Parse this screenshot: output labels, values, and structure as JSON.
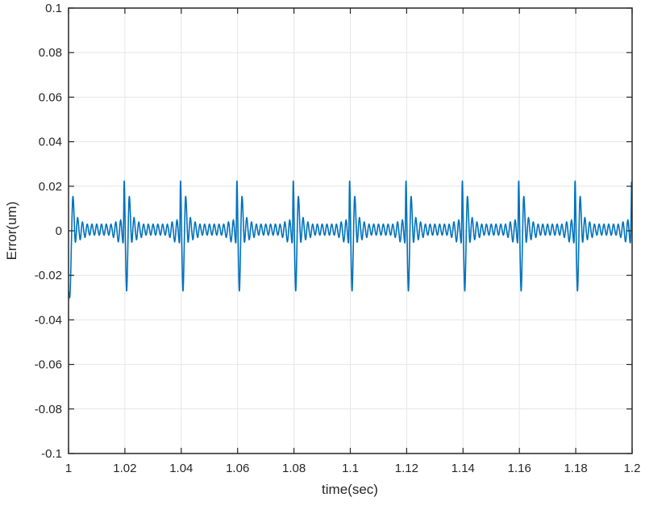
{
  "chart_data": {
    "type": "line",
    "title": "",
    "xlabel": "time(sec)",
    "ylabel": "Error(um)",
    "xlim": [
      1.0,
      1.2
    ],
    "ylim": [
      -0.1,
      0.1
    ],
    "grid": true,
    "legend": null,
    "x_ticks": [
      1,
      1.02,
      1.04,
      1.06,
      1.08,
      1.1,
      1.12,
      1.14,
      1.16,
      1.18,
      1.2
    ],
    "x_tick_labels": [
      "1",
      "1.02",
      "1.04",
      "1.06",
      "1.08",
      "1.1",
      "1.12",
      "1.14",
      "1.16",
      "1.18",
      "1.2"
    ],
    "y_ticks": [
      0.1,
      0.08,
      0.06,
      0.04,
      0.02,
      0,
      -0.02,
      -0.04,
      -0.06,
      -0.08,
      -0.1
    ],
    "y_tick_labels": [
      "0.1",
      "0.08",
      "0.06",
      "0.04",
      "0.02",
      "0",
      "-0.02",
      "-0.04",
      "-0.06",
      "-0.08",
      "-0.1"
    ],
    "series": [
      {
        "name": "Error",
        "color": "#0072BD",
        "description": "Periodic error with sharp spikes every 0.02 s (peak ≈ +0.022, trough ≈ -0.027) followed by decaying ringing (~±0.003 to ±0.015)",
        "period": 0.02,
        "peak_max": 0.022,
        "peak_min": -0.027,
        "period_keyframes": [
          [
            0.0,
            0.022
          ],
          [
            0.0008,
            -0.027
          ],
          [
            0.0017,
            0.015
          ],
          [
            0.0026,
            -0.005
          ],
          [
            0.0034,
            0.006
          ],
          [
            0.0043,
            -0.004
          ],
          [
            0.0051,
            0.004
          ],
          [
            0.006,
            -0.003
          ],
          [
            0.0068,
            0.003
          ],
          [
            0.0077,
            -0.002
          ],
          [
            0.0085,
            0.003
          ],
          [
            0.0094,
            -0.002
          ],
          [
            0.0102,
            0.003
          ],
          [
            0.0111,
            -0.002
          ],
          [
            0.0119,
            0.003
          ],
          [
            0.0128,
            -0.002
          ],
          [
            0.0136,
            0.003
          ],
          [
            0.0145,
            -0.002
          ],
          [
            0.0153,
            0.003
          ],
          [
            0.0162,
            -0.003
          ],
          [
            0.017,
            0.004
          ],
          [
            0.0179,
            -0.005
          ],
          [
            0.0187,
            0.005
          ],
          [
            0.0196,
            -0.005
          ]
        ],
        "first_spike_t": 0.9998,
        "start_point": [
          1.0,
          -0.027
        ]
      }
    ]
  },
  "colors": {
    "axis": "#262626",
    "grid": "#e6e6e6",
    "line": "#0072BD"
  }
}
